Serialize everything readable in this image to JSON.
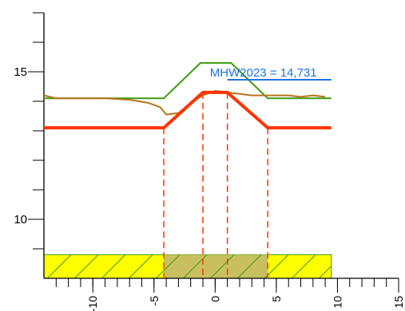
{
  "chart_data": {
    "type": "line",
    "title": "",
    "xlabel": "",
    "ylabel": "",
    "xlim": [
      -14,
      15
    ],
    "ylim": [
      8,
      17
    ],
    "grid": false,
    "y_major_ticks": [
      10,
      15
    ],
    "y_minor_ticks": [
      9,
      11,
      12,
      13,
      14,
      16,
      17
    ],
    "x_labeled_ticks": [
      -10,
      -5,
      0,
      5,
      10,
      15
    ],
    "x_tick_labels": [
      "-10",
      "-5",
      "0",
      "5",
      "10",
      "15"
    ],
    "x_minor_step": 1,
    "annotation": {
      "text": "MHW2023 = 14,731",
      "value": 14.731,
      "x_range": [
        1,
        9.5
      ],
      "color": "#1e73e8"
    },
    "series": [
      {
        "kind": "red-profile",
        "color": "#ff3300",
        "x": [
          -14,
          -4.2,
          -1,
          1,
          4.3,
          9.5
        ],
        "y": [
          13.1,
          13.1,
          14.3,
          14.3,
          13.1,
          13.1
        ]
      },
      {
        "kind": "green-profile",
        "color": "#3c9b0f",
        "x": [
          -14,
          -4.2,
          -1.2,
          1.3,
          4.3,
          9.5
        ],
        "y": [
          14.1,
          14.1,
          15.3,
          15.3,
          14.1,
          14.1
        ]
      },
      {
        "kind": "brown-measured",
        "color": "#b7741c",
        "x": [
          -14,
          -13,
          -11,
          -9,
          -7,
          -5.5,
          -4.5,
          -4,
          -3,
          -2,
          -1,
          0,
          1,
          2,
          3,
          4,
          5,
          6,
          7,
          8,
          9
        ],
        "y": [
          14.2,
          14.1,
          14.1,
          14.1,
          14.05,
          13.95,
          13.8,
          13.55,
          13.6,
          13.95,
          14.2,
          14.35,
          14.3,
          14.25,
          14.2,
          14.2,
          14.2,
          14.2,
          14.15,
          14.2,
          14.15
        ]
      }
    ],
    "dashed_verticals": [
      -4.2,
      -1,
      1,
      4.3
    ],
    "dashed_color": "#ff3300",
    "hatched_band": {
      "x_range": [
        -14,
        9.5
      ],
      "y_range": [
        8,
        8.8
      ],
      "fill": "#ffff00",
      "highlight_x_range": [
        -4.2,
        4.3
      ],
      "highlight_fill": "#c8c060",
      "hatch_color": "#3c9b0f"
    }
  }
}
